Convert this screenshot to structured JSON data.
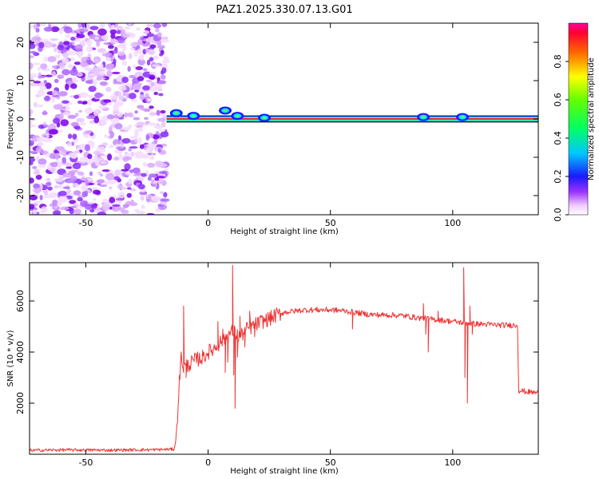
{
  "title": "PAZ1.2025.330.07.13.G01",
  "chart_data": [
    {
      "type": "heatmap",
      "name": "spectrogram",
      "xlabel": "Height of straight line (km)",
      "ylabel": "Frequency (Hz)",
      "xlim": [
        -73,
        135
      ],
      "ylim": [
        -25,
        25
      ],
      "xticks": [
        -50,
        0,
        50,
        100
      ],
      "yticks": [
        -20,
        -10,
        0,
        10,
        20
      ],
      "noise_region_x": [
        -73,
        -17
      ],
      "signal_line_frequency": 0,
      "signal_bumps": [
        {
          "x": -13,
          "freq": 1.5
        },
        {
          "x": -6,
          "freq": 0.8
        },
        {
          "x": 7,
          "freq": 2.2
        },
        {
          "x": 12,
          "freq": 0.8
        },
        {
          "x": 23,
          "freq": 0.3
        },
        {
          "x": 88,
          "freq": 0.5
        },
        {
          "x": 104,
          "freq": 0.5
        }
      ],
      "colorbar": {
        "label": "Normalized spectral amplitude",
        "range": [
          0.0,
          1.0
        ],
        "ticks": [
          0.0,
          0.2,
          0.4,
          0.6,
          0.8
        ]
      }
    },
    {
      "type": "line",
      "name": "snr",
      "xlabel": "Height of straight line (km)",
      "ylabel": "SNR (10 * v/v)",
      "xlim": [
        -73,
        135
      ],
      "ylim": [
        0,
        7500
      ],
      "xticks": [
        -50,
        0,
        50,
        100
      ],
      "yticks": [
        2000,
        4000,
        6000
      ],
      "color": "#ee3333",
      "profile": [
        [
          -73,
          150
        ],
        [
          -60,
          170
        ],
        [
          -40,
          160
        ],
        [
          -20,
          180
        ],
        [
          -14,
          200
        ],
        [
          -13,
          600
        ],
        [
          -12,
          2500
        ],
        [
          -11,
          3800
        ],
        [
          -10,
          3400
        ],
        [
          -8,
          3500
        ],
        [
          -5,
          3700
        ],
        [
          -2,
          3800
        ],
        [
          0,
          4000
        ],
        [
          2,
          4100
        ],
        [
          4,
          4300
        ],
        [
          6,
          4500
        ],
        [
          8,
          4650
        ],
        [
          10,
          4800
        ],
        [
          13,
          4600
        ],
        [
          16,
          4900
        ],
        [
          19,
          5050
        ],
        [
          22,
          5200
        ],
        [
          25,
          5300
        ],
        [
          28,
          5450
        ],
        [
          31,
          5550
        ],
        [
          35,
          5600
        ],
        [
          40,
          5650
        ],
        [
          45,
          5650
        ],
        [
          50,
          5650
        ],
        [
          55,
          5620
        ],
        [
          60,
          5550
        ],
        [
          65,
          5480
        ],
        [
          70,
          5450
        ],
        [
          75,
          5450
        ],
        [
          80,
          5420
        ],
        [
          85,
          5350
        ],
        [
          90,
          5300
        ],
        [
          95,
          5250
        ],
        [
          100,
          5200
        ],
        [
          104,
          5150
        ],
        [
          110,
          5100
        ],
        [
          115,
          5080
        ],
        [
          120,
          5050
        ],
        [
          124,
          5050
        ],
        [
          126.5,
          5050
        ],
        [
          127,
          2500
        ],
        [
          130,
          2450
        ],
        [
          135,
          2400
        ]
      ],
      "spikes": [
        [
          -10,
          5800
        ],
        [
          -9,
          3000
        ],
        [
          4,
          5200
        ],
        [
          6,
          4900
        ],
        [
          7,
          3200
        ],
        [
          8,
          3600
        ],
        [
          10,
          7400
        ],
        [
          10.5,
          3100
        ],
        [
          11,
          1800
        ],
        [
          12,
          3800
        ],
        [
          13,
          5400
        ],
        [
          15,
          4200
        ],
        [
          17,
          5600
        ],
        [
          19,
          4600
        ],
        [
          59,
          4900
        ],
        [
          88,
          5900
        ],
        [
          89,
          4700
        ],
        [
          90,
          4000
        ],
        [
          94,
          5600
        ],
        [
          103,
          5200
        ],
        [
          104.5,
          7300
        ],
        [
          105,
          3000
        ],
        [
          106,
          2000
        ],
        [
          107,
          5800
        ],
        [
          108,
          4700
        ]
      ]
    }
  ]
}
